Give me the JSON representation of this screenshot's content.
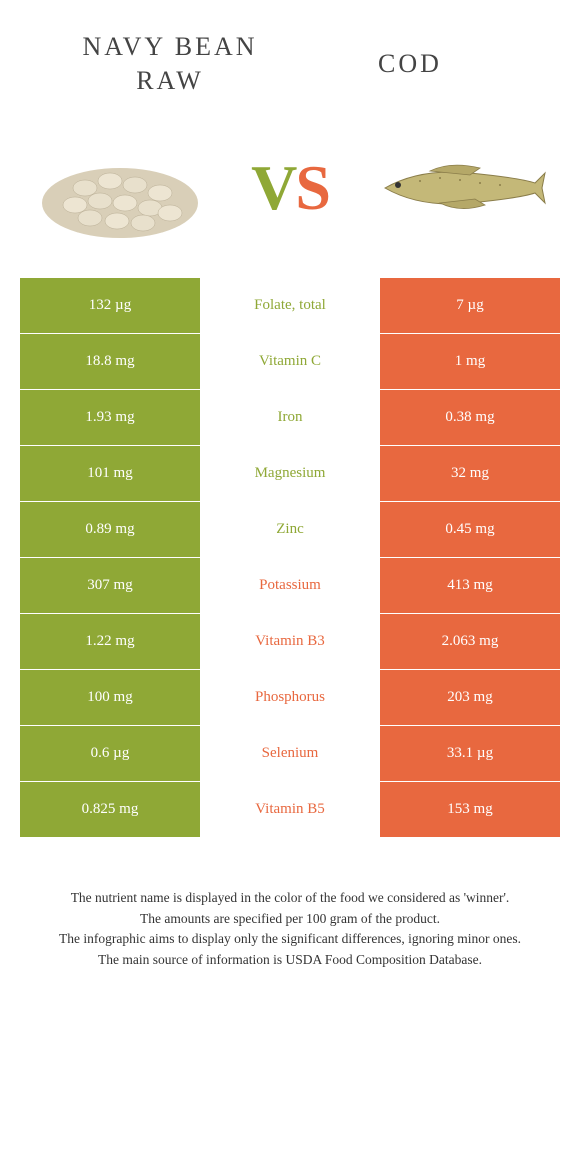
{
  "foods": {
    "left": {
      "title_line1": "NAVY BEAN",
      "title_line2": "RAW"
    },
    "right": {
      "title": "COD"
    }
  },
  "vs": {
    "v": "V",
    "s": "S"
  },
  "colors": {
    "left_bg": "#8fa836",
    "right_bg": "#e8683f",
    "text": "#333333"
  },
  "rows": [
    {
      "nutrient": "Folate, total",
      "left": "132 µg",
      "right": "7 µg",
      "winner": "left"
    },
    {
      "nutrient": "Vitamin C",
      "left": "18.8 mg",
      "right": "1 mg",
      "winner": "left"
    },
    {
      "nutrient": "Iron",
      "left": "1.93 mg",
      "right": "0.38 mg",
      "winner": "left"
    },
    {
      "nutrient": "Magnesium",
      "left": "101 mg",
      "right": "32 mg",
      "winner": "left"
    },
    {
      "nutrient": "Zinc",
      "left": "0.89 mg",
      "right": "0.45 mg",
      "winner": "left"
    },
    {
      "nutrient": "Potassium",
      "left": "307 mg",
      "right": "413 mg",
      "winner": "right"
    },
    {
      "nutrient": "Vitamin B3",
      "left": "1.22 mg",
      "right": "2.063 mg",
      "winner": "right"
    },
    {
      "nutrient": "Phosphorus",
      "left": "100 mg",
      "right": "203 mg",
      "winner": "right"
    },
    {
      "nutrient": "Selenium",
      "left": "0.6 µg",
      "right": "33.1 µg",
      "winner": "right"
    },
    {
      "nutrient": "Vitamin B5",
      "left": "0.825 mg",
      "right": "153 mg",
      "winner": "right"
    }
  ],
  "footer": {
    "line1": "The nutrient name is displayed in the color of the food we considered as 'winner'.",
    "line2": "The amounts are specified per 100 gram of the product.",
    "line3": "The infographic aims to display only the significant differences, ignoring minor ones.",
    "line4": "The main source of information is USDA Food Composition Database."
  }
}
